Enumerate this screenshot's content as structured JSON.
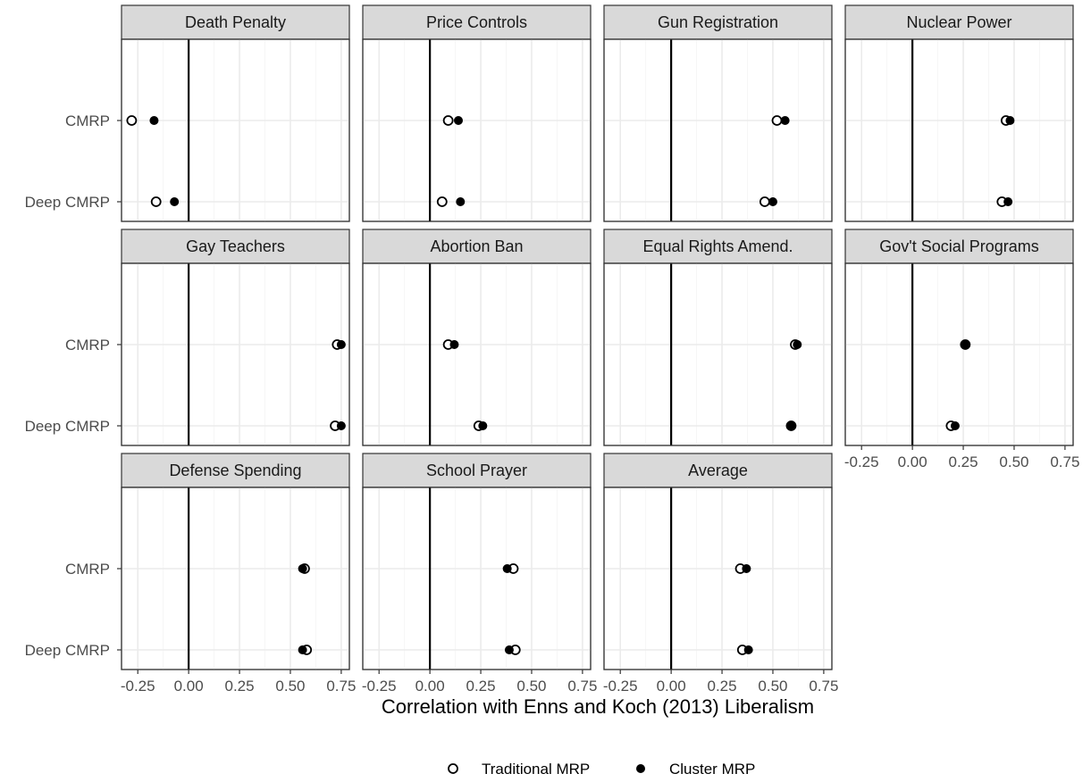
{
  "chart_data": {
    "type": "scatter",
    "xlabel": "Correlation with Enns and Koch (2013) Liberalism",
    "ylabel": "",
    "xlim": [
      -0.33,
      0.79
    ],
    "x_ticks": [
      "-0.25",
      "0.00",
      "0.25",
      "0.50",
      "0.75"
    ],
    "x_tick_values": [
      -0.25,
      0,
      0.25,
      0.5,
      0.75
    ],
    "categories": [
      "CMRP",
      "Deep CMRP"
    ],
    "grid": true,
    "legend_position": "bottom",
    "series_styles": [
      {
        "name": "Traditional MRP",
        "marker": "open-circle",
        "color": "#000000"
      },
      {
        "name": "Cluster MRP",
        "marker": "filled-circle",
        "color": "#000000"
      }
    ],
    "panels": [
      {
        "title": "Death Penalty",
        "traditional": [
          -0.28,
          -0.16
        ],
        "cluster": [
          -0.17,
          -0.07
        ]
      },
      {
        "title": "Price Controls",
        "traditional": [
          0.09,
          0.06
        ],
        "cluster": [
          0.14,
          0.15
        ]
      },
      {
        "title": "Gun Registration",
        "traditional": [
          0.52,
          0.46
        ],
        "cluster": [
          0.56,
          0.5
        ]
      },
      {
        "title": "Nuclear Power",
        "traditional": [
          0.46,
          0.44
        ],
        "cluster": [
          0.48,
          0.47
        ]
      },
      {
        "title": "Gay Teachers",
        "traditional": [
          0.73,
          0.72
        ],
        "cluster": [
          0.75,
          0.75
        ]
      },
      {
        "title": "Abortion Ban",
        "traditional": [
          0.09,
          0.24
        ],
        "cluster": [
          0.12,
          0.26
        ]
      },
      {
        "title": "Equal Rights Amend.",
        "traditional": [
          0.61,
          0.59
        ],
        "cluster": [
          0.62,
          0.59
        ]
      },
      {
        "title": "Gov't Social Programs",
        "traditional": [
          0.26,
          0.19
        ],
        "cluster": [
          0.26,
          0.21
        ]
      },
      {
        "title": "Defense Spending",
        "traditional": [
          0.57,
          0.58
        ],
        "cluster": [
          0.56,
          0.56
        ]
      },
      {
        "title": "School Prayer",
        "traditional": [
          0.41,
          0.42
        ],
        "cluster": [
          0.38,
          0.39
        ]
      },
      {
        "title": "Average",
        "traditional": [
          0.34,
          0.35
        ],
        "cluster": [
          0.37,
          0.38
        ]
      }
    ]
  },
  "legend": {
    "traditional_label": "Traditional MRP",
    "cluster_label": "Cluster MRP"
  }
}
